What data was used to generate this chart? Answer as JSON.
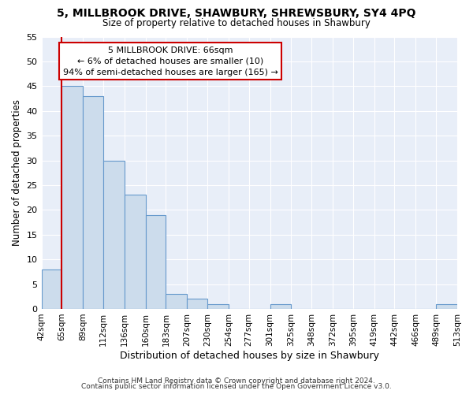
{
  "title": "5, MILLBROOK DRIVE, SHAWBURY, SHREWSBURY, SY4 4PQ",
  "subtitle": "Size of property relative to detached houses in Shawbury",
  "xlabel": "Distribution of detached houses by size in Shawbury",
  "ylabel": "Number of detached properties",
  "bar_labels": [
    "42sqm",
    "65sqm",
    "89sqm",
    "112sqm",
    "136sqm",
    "160sqm",
    "183sqm",
    "207sqm",
    "230sqm",
    "254sqm",
    "277sqm",
    "301sqm",
    "325sqm",
    "348sqm",
    "372sqm",
    "395sqm",
    "419sqm",
    "442sqm",
    "466sqm",
    "489sqm",
    "513sqm"
  ],
  "bar_values": [
    8,
    45,
    43,
    30,
    23,
    19,
    3,
    2,
    1,
    0,
    0,
    1,
    0,
    0,
    0,
    0,
    0,
    0,
    0,
    1,
    0
  ],
  "bin_edges": [
    42,
    65,
    89,
    112,
    136,
    160,
    183,
    207,
    230,
    254,
    277,
    301,
    325,
    348,
    372,
    395,
    419,
    442,
    466,
    489,
    513
  ],
  "bar_color": "#ccdcec",
  "bar_edge_color": "#6699cc",
  "property_line_x": 65,
  "property_line_color": "#cc0000",
  "annotation_text": "5 MILLBROOK DRIVE: 66sqm\n← 6% of detached houses are smaller (10)\n94% of semi-detached houses are larger (165) →",
  "annotation_box_color": "#cc0000",
  "ylim": [
    0,
    55
  ],
  "yticks": [
    0,
    5,
    10,
    15,
    20,
    25,
    30,
    35,
    40,
    45,
    50,
    55
  ],
  "background_color": "#ffffff",
  "plot_bg_color": "#e8eef8",
  "grid_color": "#ffffff",
  "footer1": "Contains HM Land Registry data © Crown copyright and database right 2024.",
  "footer2": "Contains public sector information licensed under the Open Government Licence v3.0."
}
